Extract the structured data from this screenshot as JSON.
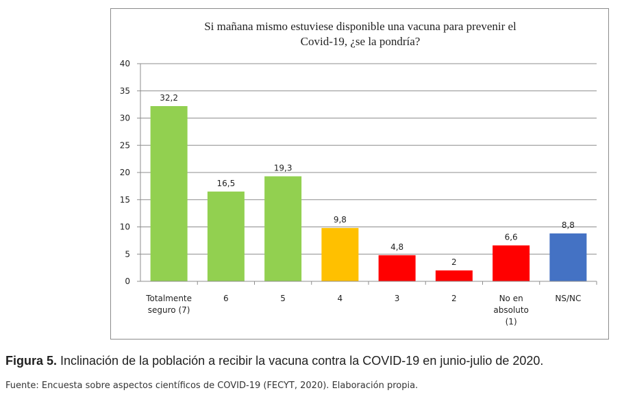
{
  "chart_data": {
    "type": "bar",
    "title_lines": [
      "Si mañana mismo estuviese disponible una vacuna para prevenir el",
      "Covid-19, ¿se la pondría?"
    ],
    "categories": [
      [
        "Totalmente",
        "seguro (7)"
      ],
      [
        "6"
      ],
      [
        "5"
      ],
      [
        "4"
      ],
      [
        "3"
      ],
      [
        "2"
      ],
      [
        "No en",
        "absoluto",
        "(1)"
      ],
      [
        "NS/NC"
      ]
    ],
    "values": [
      32.2,
      16.5,
      19.3,
      9.8,
      4.8,
      2,
      6.6,
      8.8
    ],
    "value_labels": [
      "32,2",
      "16,5",
      "19,3",
      "9,8",
      "4,8",
      "2",
      "6,6",
      "8,8"
    ],
    "bar_colors": [
      "#92d050",
      "#92d050",
      "#92d050",
      "#ffc000",
      "#ff0000",
      "#ff0000",
      "#ff0000",
      "#4472c4"
    ],
    "ylim": [
      0,
      40
    ],
    "yticks": [
      0,
      5,
      10,
      15,
      20,
      25,
      30,
      35,
      40
    ],
    "grid": true,
    "legend": "none"
  },
  "caption": {
    "label": "Figura 5.",
    "text": " Inclinación de la población a recibir la vacuna contra la COVID-19 en junio-julio de 2020."
  },
  "source": "Fuente: Encuesta sobre aspectos científicos de COVID-19 (FECYT, 2020). Elaboración propia."
}
